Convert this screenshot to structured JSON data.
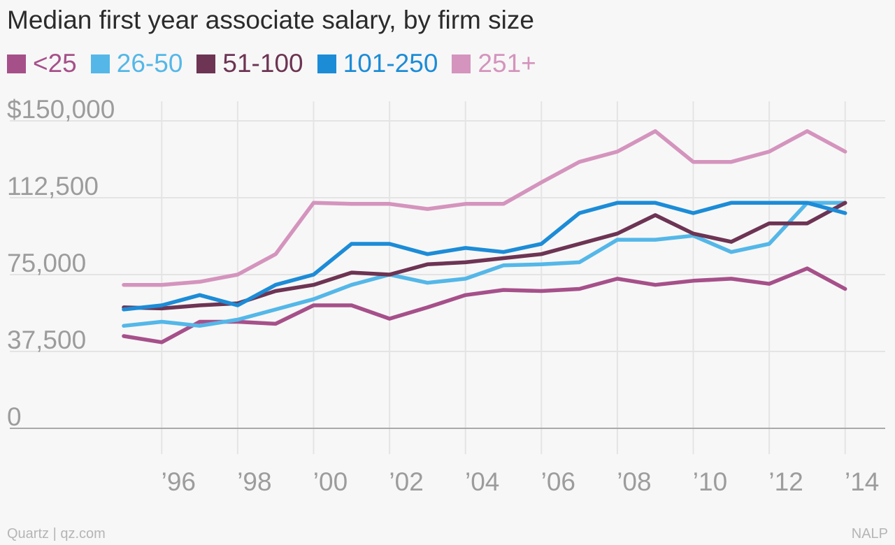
{
  "chart_data": {
    "type": "line",
    "title": "Median first year associate salary, by firm size",
    "x": [
      1995,
      1996,
      1997,
      1998,
      1999,
      2000,
      2001,
      2002,
      2003,
      2004,
      2005,
      2006,
      2007,
      2008,
      2009,
      2010,
      2011,
      2012,
      2013,
      2014
    ],
    "x_ticks": [
      1996,
      1998,
      2000,
      2002,
      2004,
      2006,
      2008,
      2010,
      2012,
      2014
    ],
    "x_tick_labels": [
      "’96",
      "’98",
      "’00",
      "’02",
      "’04",
      "’06",
      "’08",
      "’10",
      "’12",
      "’14"
    ],
    "ylim": [
      0,
      150000
    ],
    "y_ticks": [
      0,
      37500,
      75000,
      112500,
      150000
    ],
    "y_tick_labels": [
      "0",
      "37,500",
      "75,000",
      "112,500",
      "$150,000"
    ],
    "grid": true,
    "legend_position": "top-left",
    "series": [
      {
        "name": "<25",
        "color": "#a6508a",
        "values": [
          45000,
          42000,
          52000,
          52000,
          51000,
          60000,
          60000,
          53500,
          59000,
          65000,
          67500,
          67000,
          68000,
          73000,
          70000,
          72000,
          73000,
          70500,
          78000,
          68000
        ]
      },
      {
        "name": "26-50",
        "color": "#54b7e8",
        "values": [
          50000,
          52000,
          50000,
          53000,
          58000,
          63000,
          70000,
          75000,
          71000,
          73000,
          79500,
          80000,
          81000,
          92000,
          92000,
          94000,
          86000,
          90000,
          110000,
          110000
        ]
      },
      {
        "name": "51-100",
        "color": "#6d3453",
        "values": [
          59000,
          58500,
          60000,
          61000,
          67000,
          70000,
          76000,
          75000,
          80000,
          81000,
          83000,
          85000,
          90000,
          95000,
          104000,
          95000,
          91000,
          100000,
          100000,
          110000
        ]
      },
      {
        "name": "101-250",
        "color": "#1c8cd7",
        "values": [
          58000,
          60000,
          65000,
          60000,
          70000,
          75000,
          90000,
          90000,
          85000,
          88000,
          86000,
          90000,
          105000,
          110000,
          110000,
          105000,
          110000,
          110000,
          110000,
          105000
        ]
      },
      {
        "name": "251+",
        "color": "#d494bd",
        "values": [
          70000,
          70000,
          71500,
          75000,
          85000,
          110000,
          109500,
          109500,
          107000,
          109500,
          109500,
          120000,
          130000,
          135000,
          145000,
          130000,
          130000,
          135000,
          145000,
          135000
        ]
      }
    ]
  },
  "source_left": "Quartz | qz.com",
  "source_right": "NALP"
}
